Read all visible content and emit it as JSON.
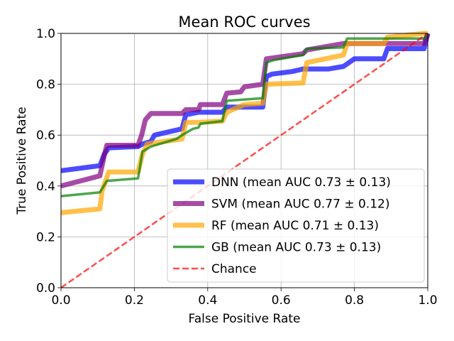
{
  "chart_data": {
    "type": "line",
    "title": "Mean ROC curves",
    "xlabel": "False Positive Rate",
    "ylabel": "True Positive Rate",
    "xlim": [
      0.0,
      1.0
    ],
    "ylim": [
      0.0,
      1.0
    ],
    "xticks": [
      "0.0",
      "0.2",
      "0.4",
      "0.6",
      "0.8",
      "1.0"
    ],
    "yticks": [
      "0.0",
      "0.2",
      "0.4",
      "0.6",
      "0.8",
      "1.0"
    ],
    "grid": true,
    "legend_position": "lower-right",
    "series": [
      {
        "name": "DNN (mean AUC 0.73 ± 0.13)",
        "color": "#0000ff",
        "x": [
          0.0,
          0.106,
          0.118,
          0.13,
          0.21,
          0.222,
          0.245,
          0.255,
          0.33,
          0.34,
          0.375,
          0.44,
          0.452,
          0.55,
          0.56,
          0.575,
          0.63,
          0.66,
          0.67,
          0.73,
          0.77,
          0.78,
          0.8,
          0.88,
          0.89,
          0.99,
          1.0
        ],
        "y": [
          0.46,
          0.48,
          0.525,
          0.55,
          0.555,
          0.565,
          0.575,
          0.6,
          0.625,
          0.68,
          0.69,
          0.69,
          0.71,
          0.71,
          0.83,
          0.84,
          0.85,
          0.86,
          0.86,
          0.86,
          0.87,
          0.88,
          0.9,
          0.9,
          0.94,
          0.94,
          1.0
        ]
      },
      {
        "name": "SVM (mean AUC 0.77 ± 0.12)",
        "color": "#800080",
        "x": [
          0.0,
          0.106,
          0.118,
          0.125,
          0.21,
          0.22,
          0.23,
          0.245,
          0.33,
          0.34,
          0.375,
          0.38,
          0.44,
          0.452,
          0.49,
          0.5,
          0.55,
          0.56,
          0.66,
          0.67,
          0.77,
          0.78,
          0.99,
          1.0
        ],
        "y": [
          0.4,
          0.44,
          0.52,
          0.56,
          0.56,
          0.6,
          0.66,
          0.685,
          0.685,
          0.7,
          0.7,
          0.72,
          0.72,
          0.765,
          0.77,
          0.79,
          0.8,
          0.9,
          0.92,
          0.935,
          0.96,
          0.96,
          0.96,
          1.0
        ]
      },
      {
        "name": "RF (mean AUC 0.71 ± 0.13)",
        "color": "#ffa500",
        "x": [
          0.0,
          0.106,
          0.112,
          0.13,
          0.21,
          0.222,
          0.235,
          0.33,
          0.34,
          0.375,
          0.38,
          0.44,
          0.452,
          0.5,
          0.55,
          0.56,
          0.66,
          0.67,
          0.77,
          0.78,
          0.88,
          0.89,
          0.99,
          1.0
        ],
        "y": [
          0.295,
          0.31,
          0.38,
          0.455,
          0.455,
          0.525,
          0.565,
          0.585,
          0.65,
          0.65,
          0.65,
          0.655,
          0.69,
          0.72,
          0.725,
          0.8,
          0.805,
          0.885,
          0.915,
          0.96,
          0.96,
          0.985,
          1.0,
          1.0
        ]
      },
      {
        "name": "GB (mean AUC 0.73 ± 0.13)",
        "color": "#008000",
        "x": [
          0.0,
          0.106,
          0.125,
          0.21,
          0.222,
          0.245,
          0.315,
          0.33,
          0.36,
          0.375,
          0.38,
          0.44,
          0.452,
          0.55,
          0.56,
          0.58,
          0.66,
          0.67,
          0.77,
          0.78,
          0.99,
          1.0
        ],
        "y": [
          0.36,
          0.375,
          0.42,
          0.43,
          0.535,
          0.555,
          0.585,
          0.6,
          0.625,
          0.63,
          0.645,
          0.655,
          0.735,
          0.745,
          0.885,
          0.895,
          0.915,
          0.94,
          0.945,
          0.98,
          0.98,
          1.0
        ]
      },
      {
        "name": "Chance",
        "color": "#ff0000",
        "dashed": true,
        "x": [
          0.0,
          1.0
        ],
        "y": [
          0.0,
          1.0
        ]
      }
    ]
  }
}
